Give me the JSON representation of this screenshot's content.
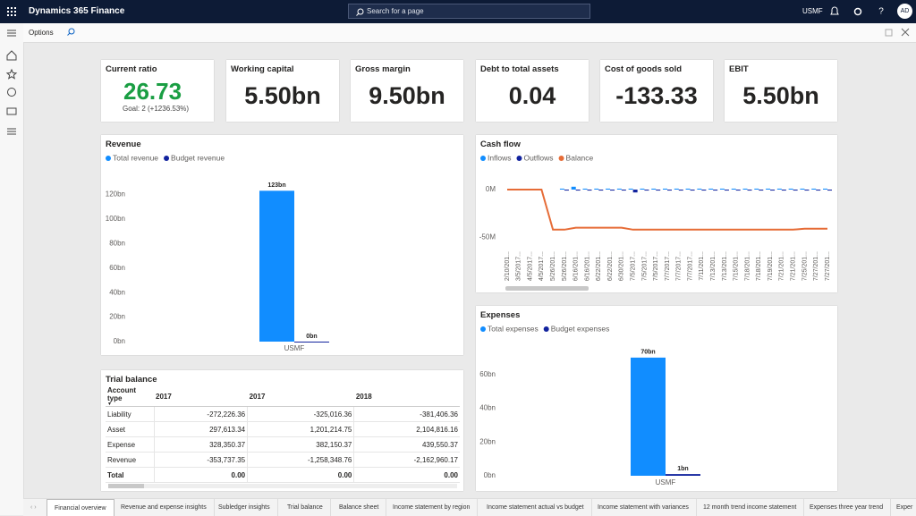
{
  "header": {
    "app": "Dynamics 365 Finance",
    "search": "Search for a page",
    "company": "USMF",
    "user": "AD"
  },
  "toolbar": {
    "options": "Options"
  },
  "kpis": [
    {
      "title": "Current ratio",
      "value": "26.73",
      "goal": "Goal: 2 (+1236.53%)"
    },
    {
      "title": "Working capital",
      "value": "5.50bn"
    },
    {
      "title": "Gross margin",
      "value": "9.50bn"
    },
    {
      "title": "Debt to total assets",
      "value": "0.04"
    },
    {
      "title": "Cost of goods sold",
      "value": "-133.33"
    },
    {
      "title": "EBIT",
      "value": "5.50bn"
    }
  ],
  "revenue": {
    "type": "bar",
    "title": "Revenue",
    "categories": [
      "USMF"
    ],
    "series": [
      {
        "name": "Total revenue",
        "color": "#118dff",
        "values": [
          123
        ],
        "value_labels": [
          "123bn"
        ]
      },
      {
        "name": "Budget revenue",
        "color": "#12239e",
        "values": [
          0
        ],
        "value_labels": [
          "0bn"
        ]
      }
    ],
    "ylim": [
      0,
      140
    ],
    "yticks": [
      {
        "value": 0,
        "label": "0bn"
      },
      {
        "value": 20,
        "label": "20bn"
      },
      {
        "value": 40,
        "label": "40bn"
      },
      {
        "value": 60,
        "label": "60bn"
      },
      {
        "value": 80,
        "label": "80bn"
      },
      {
        "value": 100,
        "label": "100bn"
      },
      {
        "value": 120,
        "label": "120bn"
      }
    ]
  },
  "cash_flow": {
    "type": "combo",
    "title": "Cash flow",
    "categories": [
      "2/10/201...",
      "3/5/2017...",
      "4/5/2017...",
      "4/5/2017...",
      "5/26/201...",
      "5/26/201...",
      "6/16/201...",
      "6/16/201...",
      "6/22/201...",
      "6/22/201...",
      "6/30/201...",
      "7/5/2017...",
      "7/5/2017...",
      "7/5/2017...",
      "7/7/2017...",
      "7/7/2017...",
      "7/7/2017...",
      "7/11/201...",
      "7/13/201...",
      "7/13/201...",
      "7/15/201...",
      "7/18/201...",
      "7/18/201...",
      "7/19/201...",
      "7/21/201...",
      "7/21/201...",
      "7/25/201...",
      "7/27/201...",
      "7/27/201..."
    ],
    "series": [
      {
        "name": "Inflows",
        "type": "bar",
        "color": "#118dff",
        "values": [
          0,
          0,
          0,
          0,
          0,
          1,
          3,
          1,
          1,
          1,
          1,
          1,
          1,
          1,
          1,
          1,
          1,
          1,
          1,
          1,
          1,
          1,
          1,
          1,
          1,
          1,
          1,
          1,
          1
        ]
      },
      {
        "name": "Outflows",
        "type": "bar",
        "color": "#12239e",
        "values": [
          0,
          0,
          0,
          0,
          0,
          -1,
          -1,
          -1,
          -1,
          -1,
          -1,
          -3,
          -1,
          -1,
          -1,
          -1,
          -1,
          -1,
          -1,
          -1,
          -1,
          -1,
          -1,
          -1,
          -1,
          -1,
          -1,
          -1,
          -1
        ]
      },
      {
        "name": "Balance",
        "type": "line",
        "color": "#e66c37",
        "values": [
          0,
          0,
          0,
          0,
          -42,
          -42,
          -40,
          -40,
          -40,
          -40,
          -40,
          -42,
          -42,
          -42,
          -42,
          -42,
          -42,
          -42,
          -42,
          -42,
          -42,
          -42,
          -42,
          -42,
          -42,
          -42,
          -41,
          -41,
          -41
        ]
      }
    ],
    "ylim": [
      -60,
      15
    ],
    "yticks": [
      {
        "value": 0,
        "label": "0M"
      },
      {
        "value": -50,
        "label": "-50M"
      }
    ]
  },
  "expenses": {
    "type": "bar",
    "title": "Expenses",
    "categories": [
      "USMF"
    ],
    "series": [
      {
        "name": "Total expenses",
        "color": "#118dff",
        "values": [
          70
        ],
        "value_labels": [
          "70bn"
        ]
      },
      {
        "name": "Budget expenses",
        "color": "#12239e",
        "values": [
          1
        ],
        "value_labels": [
          "1bn"
        ]
      }
    ],
    "ylim": [
      0,
      80
    ],
    "yticks": [
      {
        "value": 0,
        "label": "0bn"
      },
      {
        "value": 20,
        "label": "20bn"
      },
      {
        "value": 40,
        "label": "40bn"
      },
      {
        "value": 60,
        "label": "60bn"
      }
    ]
  },
  "trial_balance": {
    "title": "Trial balance",
    "columns": [
      "Account type",
      "2017",
      "2017",
      "2018"
    ],
    "rows": [
      [
        "Liability",
        "-272,226.36",
        "-325,016.36",
        "-381,406.36"
      ],
      [
        "Asset",
        "297,613.34",
        "1,201,214.75",
        "2,104,816.16"
      ],
      [
        "Expense",
        "328,350.37",
        "382,150.37",
        "439,550.37"
      ],
      [
        "Revenue",
        "-353,737.35",
        "-1,258,348.76",
        "-2,162,960.17"
      ],
      [
        "Total",
        "0.00",
        "0.00",
        "0.00"
      ]
    ]
  },
  "tabs": [
    "Financial overview",
    "Revenue and expense insights",
    "Subledger insights",
    "Trial balance",
    "Balance sheet",
    "Income statement by region",
    "Income statement actual vs budget",
    "Income statement with variances",
    "12 month trend income statement",
    "Expenses three year trend",
    "Exper"
  ]
}
